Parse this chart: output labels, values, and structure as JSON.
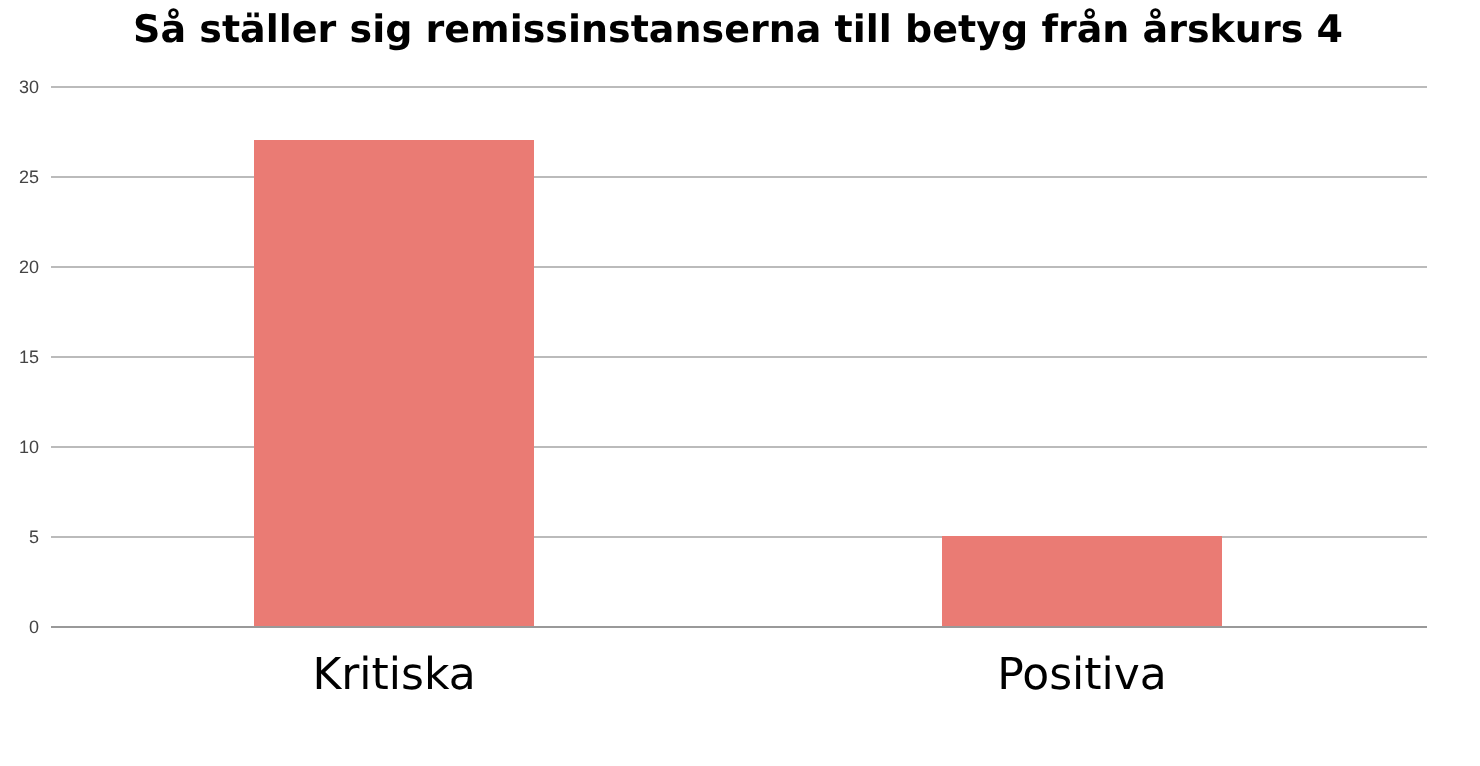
{
  "chart_data": {
    "type": "bar",
    "title": "Så ställer sig remissinstanserna till betyg från årskurs 4",
    "categories": [
      "Kritiska",
      "Positiva"
    ],
    "values": [
      27,
      5
    ],
    "color": "#ea7b74",
    "ylim": [
      0,
      30
    ],
    "yticks": [
      0,
      5,
      10,
      15,
      20,
      25,
      30
    ],
    "grid": "y"
  }
}
